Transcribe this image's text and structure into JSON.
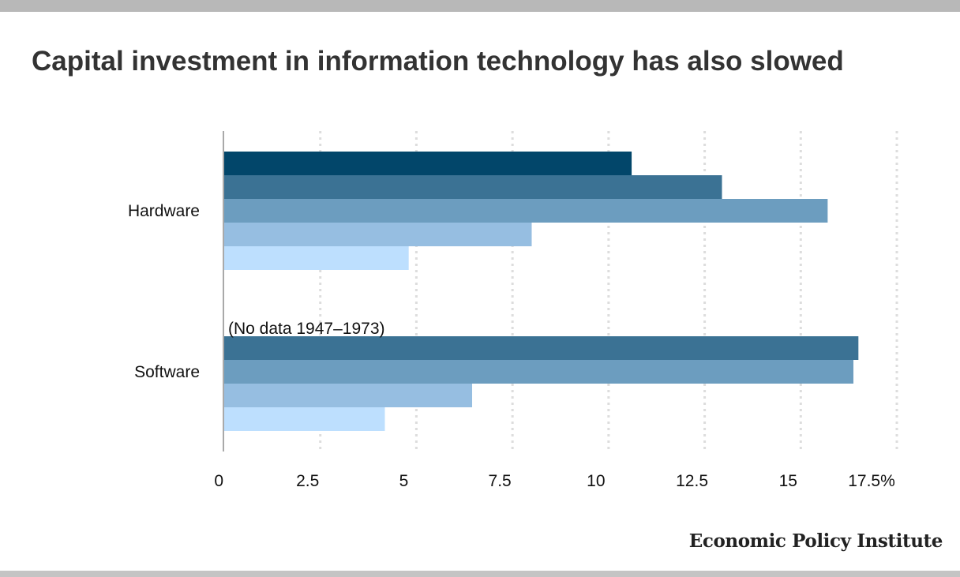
{
  "header": {
    "title": "Capital investment in information technology has also slowed"
  },
  "footer": {
    "brand": "Economic Policy Institute"
  },
  "chart_data": {
    "type": "bar",
    "orientation": "horizontal",
    "title": "Capital investment in information technology has also slowed",
    "categories": [
      "Hardware",
      "Software"
    ],
    "series": [
      {
        "color": "#02466a",
        "values": [
          10.6,
          null
        ]
      },
      {
        "color": "#3b7294",
        "values": [
          12.95,
          16.5
        ]
      },
      {
        "color": "#6c9dbf",
        "values": [
          15.7,
          16.37
        ]
      },
      {
        "color": "#96bee1",
        "values": [
          8.0,
          6.45
        ]
      },
      {
        "color": "#bddffe",
        "values": [
          4.8,
          4.18
        ]
      }
    ],
    "annotations": [
      {
        "category": "Software",
        "text": "(No data 1947–1973)"
      }
    ],
    "xlim": [
      0,
      17.5
    ],
    "xticks": [
      0,
      2.5,
      5,
      7.5,
      10,
      12.5,
      15,
      17.5
    ],
    "xtick_labels": [
      "0",
      "2.5",
      "5",
      "7.5",
      "10",
      "12.5",
      "15",
      "17.5%"
    ],
    "grid": true,
    "legend": "none"
  }
}
